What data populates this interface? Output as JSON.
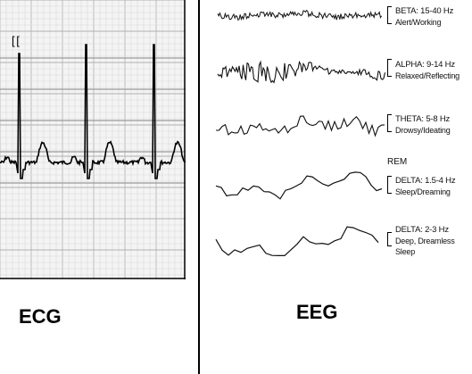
{
  "ecg": {
    "caption": "ECG",
    "marker": "[ ["
  },
  "eeg": {
    "caption": "EEG",
    "rem_label": "REM",
    "bands": [
      {
        "name": "BETA: 15-40 Hz",
        "state": "Alert/Working"
      },
      {
        "name": "ALPHA: 9-14 Hz",
        "state": "Relaxed/Reflecting"
      },
      {
        "name": "THETA: 5-8 Hz",
        "state": "Drowsy/Ideating"
      },
      {
        "name": "DELTA: 1.5-4 Hz",
        "state": "Sleep/Dreaming"
      },
      {
        "name": "DELTA: 2-3 Hz",
        "state": "Deep, Dreamless Sleep"
      }
    ]
  }
}
